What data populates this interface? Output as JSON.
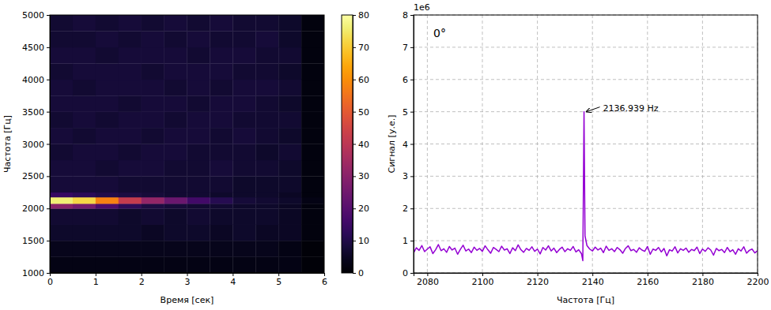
{
  "chart_data": [
    {
      "type": "heatmap",
      "x_label": "Время [сек]",
      "y_label": "Частота [Гц]",
      "xlim": [
        0,
        6
      ],
      "ylim": [
        1000,
        5000
      ],
      "xticks": [
        0,
        1,
        2,
        3,
        4,
        5,
        6
      ],
      "yticks": [
        1000,
        1500,
        2000,
        2500,
        3000,
        3500,
        4000,
        4500,
        5000
      ],
      "x_edges": [
        0,
        0.5,
        1,
        1.5,
        2,
        2.5,
        3,
        3.5,
        4,
        4.5,
        5,
        5.5,
        6
      ],
      "y_edges": [
        1000,
        1250,
        1500,
        1750,
        2000,
        2075,
        2175,
        2250,
        2500,
        2750,
        3000,
        3250,
        3500,
        3750,
        4000,
        4250,
        4500,
        4750,
        5000
      ],
      "z": [
        [
          3,
          3,
          3,
          3,
          3,
          3,
          3,
          3,
          3,
          3,
          3,
          1
        ],
        [
          4,
          4,
          4,
          4,
          4,
          4,
          4,
          4,
          4,
          4,
          3,
          1
        ],
        [
          6,
          6,
          6,
          6,
          5,
          6,
          6,
          5,
          6,
          5,
          5,
          2
        ],
        [
          7,
          7,
          7,
          6,
          7,
          6,
          7,
          6,
          6,
          6,
          5,
          2
        ],
        [
          30,
          26,
          18,
          12,
          9,
          8,
          7,
          7,
          6,
          6,
          5,
          2
        ],
        [
          76,
          72,
          58,
          42,
          32,
          24,
          16,
          11,
          8,
          7,
          6,
          3
        ],
        [
          14,
          12,
          10,
          9,
          8,
          7,
          7,
          6,
          6,
          6,
          5,
          2
        ],
        [
          8,
          8,
          8,
          7,
          7,
          7,
          7,
          7,
          6,
          6,
          6,
          2
        ],
        [
          8,
          8,
          7,
          8,
          8,
          7,
          7,
          8,
          7,
          7,
          6,
          2
        ],
        [
          7,
          8,
          8,
          7,
          8,
          8,
          7,
          7,
          7,
          6,
          7,
          2
        ],
        [
          8,
          7,
          8,
          8,
          7,
          8,
          8,
          7,
          8,
          7,
          6,
          2
        ],
        [
          7,
          8,
          7,
          8,
          8,
          7,
          8,
          8,
          7,
          7,
          7,
          2
        ],
        [
          8,
          8,
          8,
          7,
          8,
          8,
          7,
          8,
          8,
          7,
          6,
          2
        ],
        [
          8,
          7,
          8,
          8,
          8,
          7,
          8,
          7,
          8,
          8,
          7,
          2
        ],
        [
          7,
          8,
          8,
          8,
          7,
          8,
          8,
          8,
          7,
          7,
          6,
          2
        ],
        [
          8,
          8,
          7,
          8,
          8,
          8,
          7,
          8,
          8,
          7,
          7,
          2
        ],
        [
          7,
          7,
          8,
          7,
          8,
          7,
          8,
          7,
          7,
          8,
          6,
          2
        ],
        [
          7,
          8,
          7,
          8,
          7,
          8,
          7,
          8,
          7,
          7,
          6,
          2
        ]
      ],
      "colorbar": {
        "range": [
          0,
          80
        ],
        "ticks": [
          0,
          10,
          20,
          30,
          40,
          50,
          60,
          70,
          80
        ]
      }
    },
    {
      "type": "line",
      "x_label": "Частота [Гц]",
      "y_label": "Сигнал [у.е.]",
      "y_multiplier": "1e6",
      "label": "0°",
      "color": "#9400d3",
      "grid": true,
      "xlim": [
        2075,
        2200
      ],
      "ylim": [
        0,
        8
      ],
      "xticks": [
        2080,
        2100,
        2120,
        2140,
        2160,
        2180,
        2200
      ],
      "yticks": [
        0,
        1,
        2,
        3,
        4,
        5,
        6,
        7,
        8
      ],
      "x": [
        2075,
        2076,
        2077,
        2078,
        2079,
        2080,
        2081,
        2082,
        2083,
        2084,
        2085,
        2086,
        2087,
        2088,
        2089,
        2090,
        2091,
        2092,
        2093,
        2094,
        2095,
        2096,
        2097,
        2098,
        2099,
        2100,
        2101,
        2102,
        2103,
        2104,
        2105,
        2106,
        2107,
        2108,
        2109,
        2110,
        2111,
        2112,
        2113,
        2114,
        2115,
        2116,
        2117,
        2118,
        2119,
        2120,
        2121,
        2122,
        2123,
        2124,
        2125,
        2126,
        2127,
        2128,
        2129,
        2130,
        2131,
        2132,
        2133,
        2134,
        2135,
        2136,
        2136.5,
        2136.939,
        2137.3,
        2138,
        2139,
        2140,
        2141,
        2142,
        2143,
        2144,
        2145,
        2146,
        2147,
        2148,
        2149,
        2150,
        2151,
        2152,
        2153,
        2154,
        2155,
        2156,
        2157,
        2158,
        2159,
        2160,
        2161,
        2162,
        2163,
        2164,
        2165,
        2166,
        2167,
        2168,
        2169,
        2170,
        2171,
        2172,
        2173,
        2174,
        2175,
        2176,
        2177,
        2178,
        2179,
        2180,
        2181,
        2182,
        2183,
        2184,
        2185,
        2186,
        2187,
        2188,
        2189,
        2190,
        2191,
        2192,
        2193,
        2194,
        2195,
        2196,
        2197,
        2198,
        2199,
        2200
      ],
      "values": [
        0.62,
        0.78,
        0.7,
        0.85,
        0.66,
        0.74,
        0.81,
        0.6,
        0.72,
        0.88,
        0.69,
        0.75,
        0.64,
        0.82,
        0.71,
        0.77,
        0.58,
        0.73,
        0.86,
        0.68,
        0.74,
        0.63,
        0.8,
        0.7,
        0.76,
        0.67,
        0.84,
        0.72,
        0.61,
        0.79,
        0.73,
        0.66,
        0.83,
        0.71,
        0.75,
        0.6,
        0.78,
        0.69,
        0.87,
        0.72,
        0.64,
        0.76,
        0.7,
        0.81,
        0.67,
        0.74,
        0.59,
        0.79,
        0.71,
        0.84,
        0.68,
        0.77,
        0.63,
        0.73,
        0.8,
        0.66,
        0.75,
        0.7,
        0.82,
        0.65,
        0.72,
        0.6,
        0.38,
        5.0,
        1.15,
        0.85,
        0.74,
        0.68,
        0.8,
        0.71,
        0.77,
        0.63,
        0.83,
        0.7,
        0.75,
        0.66,
        0.79,
        0.72,
        0.61,
        0.76,
        0.84,
        0.69,
        0.73,
        0.64,
        0.78,
        0.71,
        0.67,
        0.82,
        0.58,
        0.74,
        0.7,
        0.79,
        0.65,
        0.76,
        0.53,
        0.72,
        0.68,
        0.81,
        0.62,
        0.75,
        0.7,
        0.77,
        0.64,
        0.73,
        0.69,
        0.8,
        0.6,
        0.74,
        0.67,
        0.78,
        0.71,
        0.55,
        0.76,
        0.69,
        0.73,
        0.63,
        0.79,
        0.66,
        0.72,
        0.58,
        0.75,
        0.68,
        0.81,
        0.61,
        0.7,
        0.74,
        0.62,
        0.69
      ],
      "annotations": [
        {
          "text": "2136.939 Hz",
          "x": 2136.939,
          "y": 5.0
        }
      ]
    }
  ]
}
